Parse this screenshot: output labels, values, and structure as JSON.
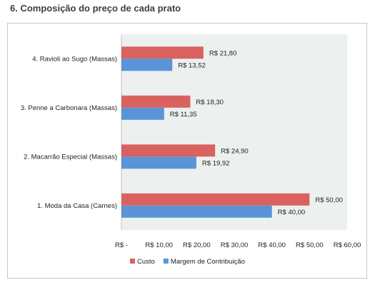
{
  "title": "6. Composição do preço de cada prato",
  "colors": {
    "custo": "#d9625f",
    "margem": "#5b93d8",
    "plot_bg": "#ecf1f0"
  },
  "chart_data": {
    "type": "bar",
    "orientation": "horizontal",
    "categories": [
      "4. Ravioli ao Sugo (Massas)",
      "3. Penne a Carbonara (Massas)",
      "2. Macarrão Especial (Massas)",
      "1. Moda da Casa (Carnes)"
    ],
    "series": [
      {
        "name": "Custo",
        "values": [
          21.8,
          18.3,
          24.9,
          50.0
        ],
        "labels": [
          "R$ 21,80",
          "R$ 18,30",
          "R$ 24,90",
          "R$ 50,00"
        ]
      },
      {
        "name": "Margem de Contribuição",
        "values": [
          13.52,
          11.35,
          19.92,
          40.0
        ],
        "labels": [
          "R$ 13,52",
          "R$ 11,35",
          "R$ 19,92",
          "R$ 40,00"
        ]
      }
    ],
    "xlim": [
      0,
      60
    ],
    "xticks": [
      0,
      10,
      20,
      30,
      40,
      50,
      60
    ],
    "xtick_labels": [
      "R$ -",
      "R$ 10,00",
      "R$ 20,00",
      "R$ 30,00",
      "R$ 40,00",
      "R$ 50,00",
      "R$ 60,00"
    ],
    "legend_position": "bottom",
    "grid": false
  }
}
